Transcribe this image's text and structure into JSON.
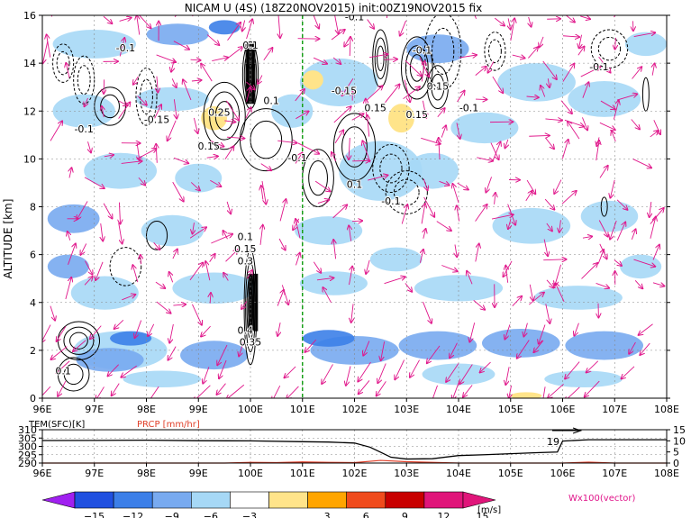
{
  "chart_data": [
    {
      "type": "heatmap",
      "title": "NICAM U (4S)  (18Z20NOV2015)  init:00Z19NOV2015  fix",
      "ylabel": "ALTITUDE [km]",
      "x_ticks": [
        "96E",
        "97E",
        "98E",
        "99E",
        "100E",
        "101E",
        "102E",
        "103E",
        "104E",
        "105E",
        "106E",
        "107E",
        "108E"
      ],
      "y_ticks": [
        "0",
        "2",
        "4",
        "6",
        "8",
        "10",
        "12",
        "14",
        "16"
      ],
      "xlim": [
        96,
        108
      ],
      "ylim": [
        0,
        16
      ],
      "grid": true,
      "overlays": [
        "zonal wind shading",
        "vertical velocity contours",
        "wind vectors (W x100)"
      ],
      "marker_line_lon": 101,
      "contour_labels": [
        {
          "text": "-0.1",
          "lon": 97.6,
          "alt": 14.5
        },
        {
          "text": "-0.1",
          "lon": 96.8,
          "alt": 11.1
        },
        {
          "text": "-0.15",
          "lon": 98.2,
          "alt": 11.5
        },
        {
          "text": "0.15",
          "lon": 99.2,
          "alt": 10.4
        },
        {
          "text": "0.25",
          "lon": 99.4,
          "alt": 11.8
        },
        {
          "text": "0.1",
          "lon": 100.0,
          "alt": 14.6
        },
        {
          "text": "0.1",
          "lon": 100.4,
          "alt": 12.3
        },
        {
          "text": "-0.1",
          "lon": 102.0,
          "alt": 15.8
        },
        {
          "text": "-0.15",
          "lon": 101.8,
          "alt": 12.7
        },
        {
          "text": "-0.1",
          "lon": 100.9,
          "alt": 9.9
        },
        {
          "text": "0.15",
          "lon": 102.4,
          "alt": 12.0
        },
        {
          "text": "-0.1",
          "lon": 103.3,
          "alt": 14.4
        },
        {
          "text": "0.15",
          "lon": 103.6,
          "alt": 12.9
        },
        {
          "text": "0.15",
          "lon": 103.2,
          "alt": 11.7
        },
        {
          "text": "-0.1",
          "lon": 104.2,
          "alt": 12.0
        },
        {
          "text": "0.1",
          "lon": 102.0,
          "alt": 8.8
        },
        {
          "text": "-0.1",
          "lon": 102.7,
          "alt": 8.1
        },
        {
          "text": "-0.1",
          "lon": 106.7,
          "alt": 13.7
        },
        {
          "text": "0.1",
          "lon": 99.9,
          "alt": 6.6
        },
        {
          "text": "0.15",
          "lon": 99.9,
          "alt": 6.1
        },
        {
          "text": "0.3",
          "lon": 99.9,
          "alt": 5.6
        },
        {
          "text": "0.4",
          "lon": 99.9,
          "alt": 2.7
        },
        {
          "text": "0.35",
          "lon": 100.0,
          "alt": 2.2
        },
        {
          "text": "0.1",
          "lon": 96.4,
          "alt": 1.0
        }
      ]
    },
    {
      "type": "line",
      "xlim": [
        96,
        108
      ],
      "left_axis_label": "TEM(SFC)[K]",
      "right_axis_label": "PRCP [mm/hr]",
      "left_ticks": [
        "310",
        "305",
        "300",
        "295",
        "290"
      ],
      "right_ticks": [
        "15",
        "10",
        "5",
        "0"
      ],
      "x_ticks": [
        "96E",
        "97E",
        "98E",
        "99E",
        "100E",
        "101E",
        "102E",
        "103E",
        "104E",
        "105E",
        "106E",
        "107E",
        "108E"
      ],
      "series": [
        {
          "name": "TEM(SFC)[K]",
          "color": "#000000",
          "x": [
            96,
            97,
            98,
            99,
            100,
            101,
            101.5,
            102,
            102.3,
            102.5,
            102.7,
            103,
            103.5,
            104,
            104.5,
            105,
            105.5,
            105.9,
            106,
            106.5,
            107,
            108
          ],
          "values": [
            303.5,
            303.6,
            303.7,
            303.4,
            303.3,
            302.8,
            302.6,
            302.0,
            299.5,
            296.5,
            293.5,
            292.4,
            292.6,
            294.5,
            295.0,
            295.6,
            296.2,
            296.6,
            303.2,
            304.0,
            304.0,
            304.0
          ]
        },
        {
          "name": "PRCP [mm/hr]",
          "color": "#e0402a",
          "x": [
            96,
            99.5,
            100,
            100.5,
            101,
            101.5,
            102,
            102.5,
            103,
            104,
            105,
            106,
            106.5,
            107,
            108
          ],
          "values": [
            0,
            0,
            0.3,
            0.2,
            0.5,
            0.3,
            0.2,
            1.2,
            0.6,
            0,
            0,
            0,
            0.4,
            0,
            0
          ]
        }
      ],
      "annotation": "19"
    }
  ],
  "colorbar": {
    "ticks": [
      "−15",
      "−12",
      "−9",
      "−6",
      "−3",
      "3",
      "6",
      "9",
      "12",
      "15"
    ],
    "unit": "[m/s]",
    "colors": [
      "#a020f0",
      "#2050e0",
      "#3c7fe8",
      "#78aaf0",
      "#a6d8f6",
      "#ffffff",
      "#ffe48a",
      "#ffa500",
      "#f04b1c",
      "#c80000",
      "#e0157a"
    ]
  },
  "vector_label": "Wx100(vector)",
  "colors": {
    "vector": "#e0158a",
    "marker_line": "#1aa01a",
    "prcp": "#e0402a"
  }
}
